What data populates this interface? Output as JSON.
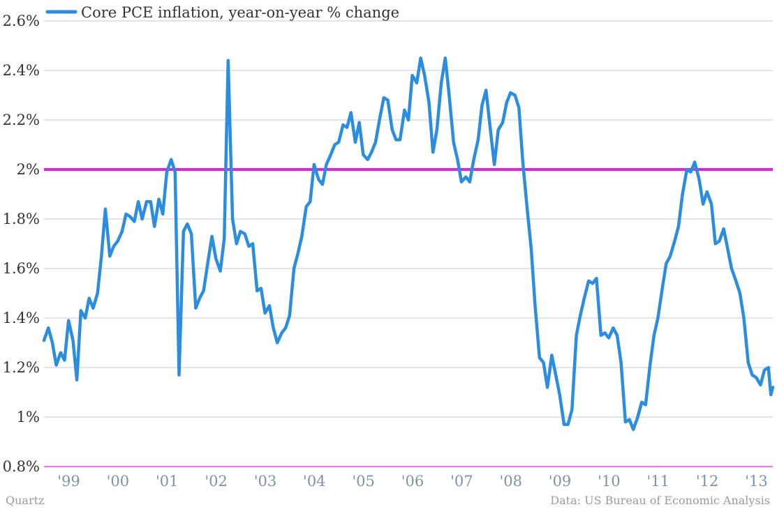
{
  "chart_data": {
    "type": "line",
    "title": "",
    "xlabel": "",
    "ylabel": "",
    "xlim": [
      1998.58,
      2013.42
    ],
    "ylim": [
      0.8,
      2.6
    ],
    "grid": true,
    "legend_position": "top-left",
    "y_ticks": [
      {
        "value": 0.8,
        "label": "0.8%"
      },
      {
        "value": 1.0,
        "label": "1%"
      },
      {
        "value": 1.2,
        "label": "1.2%"
      },
      {
        "value": 1.4,
        "label": "1.4%"
      },
      {
        "value": 1.6,
        "label": "1.6%"
      },
      {
        "value": 1.8,
        "label": "1.8%"
      },
      {
        "value": 2.0,
        "label": "2%"
      },
      {
        "value": 2.2,
        "label": "2.2%"
      },
      {
        "value": 2.4,
        "label": "2.4%"
      },
      {
        "value": 2.6,
        "label": "2.6%"
      }
    ],
    "x_ticks": [
      {
        "value": 1999.0,
        "label": "'99"
      },
      {
        "value": 2000.0,
        "label": "'00"
      },
      {
        "value": 2001.0,
        "label": "'01"
      },
      {
        "value": 2002.0,
        "label": "'02"
      },
      {
        "value": 2003.0,
        "label": "'03"
      },
      {
        "value": 2004.0,
        "label": "'04"
      },
      {
        "value": 2005.0,
        "label": "'05"
      },
      {
        "value": 2006.0,
        "label": "'06"
      },
      {
        "value": 2007.0,
        "label": "'07"
      },
      {
        "value": 2008.0,
        "label": "'08"
      },
      {
        "value": 2009.0,
        "label": "'09"
      },
      {
        "value": 2010.0,
        "label": "'10"
      },
      {
        "value": 2011.0,
        "label": "'11"
      },
      {
        "value": 2012.0,
        "label": "'12"
      },
      {
        "value": 2013.0,
        "label": "'13"
      }
    ],
    "reference_line": {
      "value": 2.0,
      "color": "#e61ee6"
    },
    "series": [
      {
        "name": "Core PCE inflation, year-on-year % change",
        "color": "#2b8de0",
        "points": [
          [
            1998.58,
            1.31
          ],
          [
            1998.67,
            1.36
          ],
          [
            1998.75,
            1.3
          ],
          [
            1998.83,
            1.21
          ],
          [
            1998.92,
            1.26
          ],
          [
            1999.0,
            1.23
          ],
          [
            1999.08,
            1.39
          ],
          [
            1999.17,
            1.31
          ],
          [
            1999.25,
            1.15
          ],
          [
            1999.33,
            1.43
          ],
          [
            1999.42,
            1.4
          ],
          [
            1999.5,
            1.48
          ],
          [
            1999.58,
            1.44
          ],
          [
            1999.67,
            1.5
          ],
          [
            1999.75,
            1.65
          ],
          [
            1999.83,
            1.84
          ],
          [
            1999.92,
            1.65
          ],
          [
            2000.0,
            1.69
          ],
          [
            2000.08,
            1.71
          ],
          [
            2000.17,
            1.75
          ],
          [
            2000.25,
            1.82
          ],
          [
            2000.33,
            1.81
          ],
          [
            2000.42,
            1.79
          ],
          [
            2000.5,
            1.87
          ],
          [
            2000.58,
            1.8
          ],
          [
            2000.67,
            1.87
          ],
          [
            2000.75,
            1.87
          ],
          [
            2000.83,
            1.77
          ],
          [
            2000.92,
            1.88
          ],
          [
            2001.0,
            1.82
          ],
          [
            2001.08,
            1.99
          ],
          [
            2001.17,
            2.04
          ],
          [
            2001.25,
            1.99
          ],
          [
            2001.33,
            1.17
          ],
          [
            2001.42,
            1.75
          ],
          [
            2001.5,
            1.78
          ],
          [
            2001.58,
            1.74
          ],
          [
            2001.67,
            1.44
          ],
          [
            2001.75,
            1.48
          ],
          [
            2001.83,
            1.51
          ],
          [
            2001.92,
            1.63
          ],
          [
            2002.0,
            1.73
          ],
          [
            2002.08,
            1.64
          ],
          [
            2002.17,
            1.59
          ],
          [
            2002.25,
            1.72
          ],
          [
            2002.33,
            2.44
          ],
          [
            2002.42,
            1.8
          ],
          [
            2002.5,
            1.7
          ],
          [
            2002.58,
            1.75
          ],
          [
            2002.67,
            1.74
          ],
          [
            2002.75,
            1.69
          ],
          [
            2002.83,
            1.7
          ],
          [
            2002.92,
            1.51
          ],
          [
            2003.0,
            1.52
          ],
          [
            2003.08,
            1.42
          ],
          [
            2003.17,
            1.45
          ],
          [
            2003.25,
            1.36
          ],
          [
            2003.33,
            1.3
          ],
          [
            2003.42,
            1.34
          ],
          [
            2003.5,
            1.36
          ],
          [
            2003.58,
            1.41
          ],
          [
            2003.67,
            1.6
          ],
          [
            2003.75,
            1.66
          ],
          [
            2003.83,
            1.73
          ],
          [
            2003.92,
            1.85
          ],
          [
            2004.0,
            1.87
          ],
          [
            2004.08,
            2.02
          ],
          [
            2004.17,
            1.96
          ],
          [
            2004.25,
            1.94
          ],
          [
            2004.33,
            2.02
          ],
          [
            2004.42,
            2.06
          ],
          [
            2004.5,
            2.1
          ],
          [
            2004.58,
            2.11
          ],
          [
            2004.67,
            2.18
          ],
          [
            2004.75,
            2.17
          ],
          [
            2004.83,
            2.23
          ],
          [
            2004.92,
            2.11
          ],
          [
            2005.0,
            2.19
          ],
          [
            2005.08,
            2.06
          ],
          [
            2005.17,
            2.04
          ],
          [
            2005.25,
            2.07
          ],
          [
            2005.33,
            2.11
          ],
          [
            2005.42,
            2.21
          ],
          [
            2005.5,
            2.29
          ],
          [
            2005.58,
            2.28
          ],
          [
            2005.67,
            2.16
          ],
          [
            2005.75,
            2.12
          ],
          [
            2005.83,
            2.12
          ],
          [
            2005.92,
            2.24
          ],
          [
            2006.0,
            2.2
          ],
          [
            2006.08,
            2.38
          ],
          [
            2006.17,
            2.35
          ],
          [
            2006.25,
            2.45
          ],
          [
            2006.33,
            2.38
          ],
          [
            2006.42,
            2.27
          ],
          [
            2006.5,
            2.07
          ],
          [
            2006.58,
            2.16
          ],
          [
            2006.67,
            2.35
          ],
          [
            2006.75,
            2.45
          ],
          [
            2006.83,
            2.3
          ],
          [
            2006.92,
            2.11
          ],
          [
            2007.0,
            2.04
          ],
          [
            2007.08,
            1.95
          ],
          [
            2007.17,
            1.97
          ],
          [
            2007.25,
            1.95
          ],
          [
            2007.33,
            2.04
          ],
          [
            2007.42,
            2.12
          ],
          [
            2007.5,
            2.26
          ],
          [
            2007.58,
            2.32
          ],
          [
            2007.67,
            2.16
          ],
          [
            2007.75,
            2.02
          ],
          [
            2007.83,
            2.16
          ],
          [
            2007.92,
            2.19
          ],
          [
            2008.0,
            2.27
          ],
          [
            2008.08,
            2.31
          ],
          [
            2008.17,
            2.3
          ],
          [
            2008.25,
            2.25
          ],
          [
            2008.33,
            2.03
          ],
          [
            2008.42,
            1.84
          ],
          [
            2008.5,
            1.68
          ],
          [
            2008.58,
            1.45
          ],
          [
            2008.67,
            1.24
          ],
          [
            2008.75,
            1.22
          ],
          [
            2008.83,
            1.12
          ],
          [
            2008.92,
            1.25
          ],
          [
            2009.0,
            1.17
          ],
          [
            2009.08,
            1.09
          ],
          [
            2009.17,
            0.97
          ],
          [
            2009.25,
            0.97
          ],
          [
            2009.33,
            1.03
          ],
          [
            2009.42,
            1.33
          ],
          [
            2009.5,
            1.41
          ],
          [
            2009.58,
            1.48
          ],
          [
            2009.67,
            1.55
          ],
          [
            2009.75,
            1.54
          ],
          [
            2009.83,
            1.56
          ],
          [
            2009.92,
            1.33
          ],
          [
            2010.0,
            1.34
          ],
          [
            2010.08,
            1.32
          ],
          [
            2010.17,
            1.36
          ],
          [
            2010.25,
            1.33
          ],
          [
            2010.33,
            1.22
          ],
          [
            2010.42,
            0.98
          ],
          [
            2010.5,
            0.99
          ],
          [
            2010.58,
            0.95
          ],
          [
            2010.67,
            1.0
          ],
          [
            2010.75,
            1.06
          ],
          [
            2010.83,
            1.05
          ],
          [
            2010.92,
            1.21
          ],
          [
            2011.0,
            1.33
          ],
          [
            2011.08,
            1.4
          ],
          [
            2011.17,
            1.52
          ],
          [
            2011.25,
            1.62
          ],
          [
            2011.33,
            1.65
          ],
          [
            2011.42,
            1.71
          ],
          [
            2011.5,
            1.77
          ],
          [
            2011.58,
            1.9
          ],
          [
            2011.67,
            2.0
          ],
          [
            2011.75,
            1.99
          ],
          [
            2011.83,
            2.03
          ],
          [
            2011.92,
            1.96
          ],
          [
            2012.0,
            1.86
          ],
          [
            2012.08,
            1.91
          ],
          [
            2012.17,
            1.86
          ],
          [
            2012.25,
            1.7
          ],
          [
            2012.33,
            1.71
          ],
          [
            2012.42,
            1.76
          ],
          [
            2012.5,
            1.68
          ],
          [
            2012.58,
            1.6
          ],
          [
            2012.67,
            1.55
          ],
          [
            2012.75,
            1.5
          ],
          [
            2012.83,
            1.4
          ],
          [
            2012.92,
            1.22
          ],
          [
            2013.0,
            1.17
          ],
          [
            2013.08,
            1.16
          ],
          [
            2013.17,
            1.13
          ],
          [
            2013.25,
            1.19
          ],
          [
            2013.33,
            1.2
          ],
          [
            2013.38,
            1.09
          ],
          [
            2013.42,
            1.12
          ]
        ]
      }
    ]
  },
  "footer": {
    "source_left": "Quartz",
    "source_right": "Data: US Bureau of Economic Analysis"
  }
}
